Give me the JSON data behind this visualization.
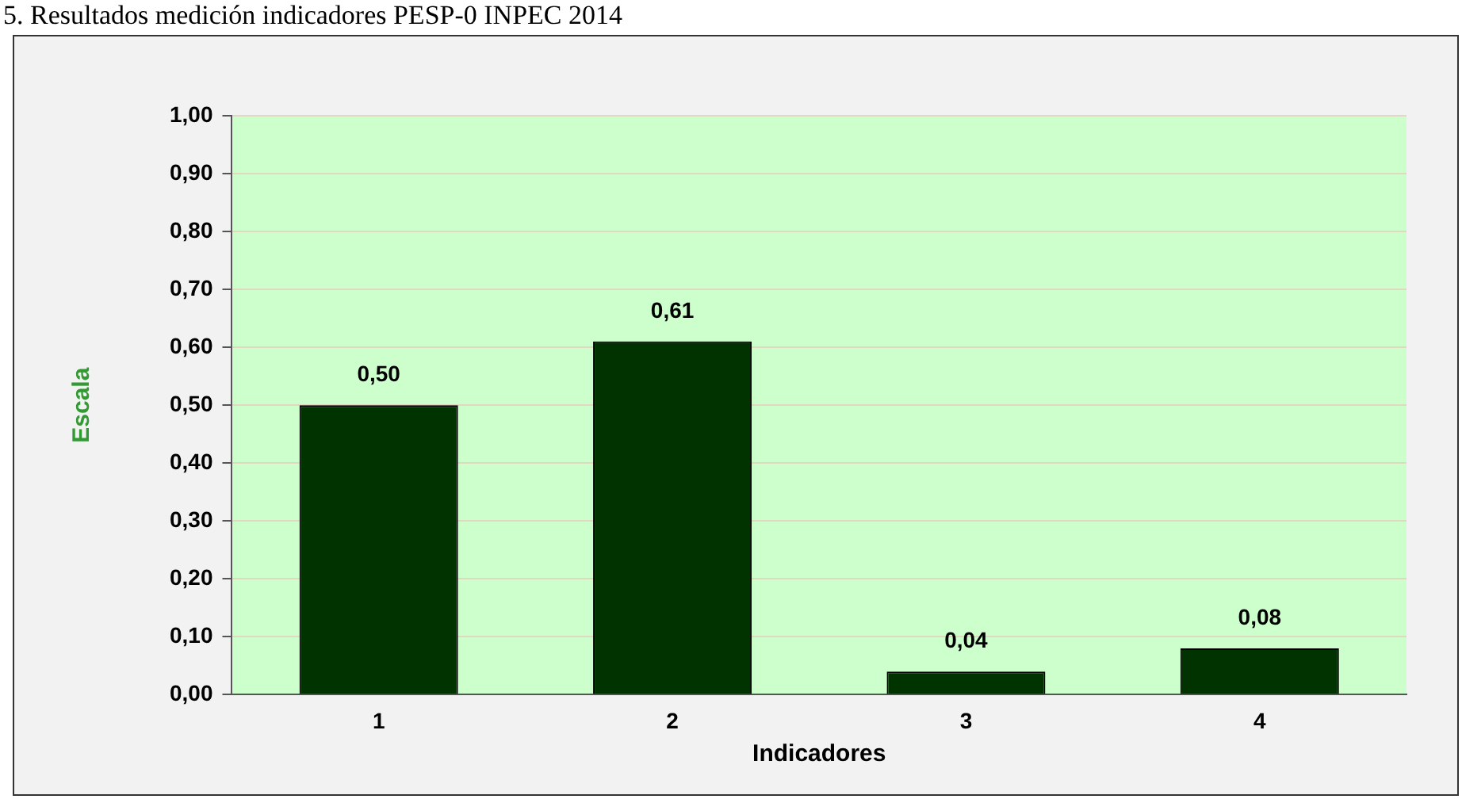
{
  "chart_data": {
    "type": "bar",
    "title": "5. Resultados medición indicadores PESP-0 INPEC 2014",
    "xlabel": "Indicadores",
    "ylabel": "Escala",
    "categories": [
      "1",
      "2",
      "3",
      "4"
    ],
    "values": [
      0.5,
      0.61,
      0.04,
      0.08
    ],
    "value_labels": [
      "0,50",
      "0,61",
      "0,04",
      "0,08"
    ],
    "color": "#003300",
    "ylim": [
      0,
      1
    ],
    "yticks": [
      {
        "value": 0,
        "label": "0,00"
      },
      {
        "value": 0.1,
        "label": "0,10"
      },
      {
        "value": 0.2,
        "label": "0,20"
      },
      {
        "value": 0.3,
        "label": "0,30"
      },
      {
        "value": 0.4,
        "label": "0,40"
      },
      {
        "value": 0.5,
        "label": "0,50"
      },
      {
        "value": 0.6,
        "label": "0,60"
      },
      {
        "value": 0.7,
        "label": "0,70"
      },
      {
        "value": 0.8,
        "label": "0,80"
      },
      {
        "value": 0.9,
        "label": "0,90"
      },
      {
        "value": 1,
        "label": "1,00"
      }
    ],
    "grid": "y",
    "legend": false
  }
}
